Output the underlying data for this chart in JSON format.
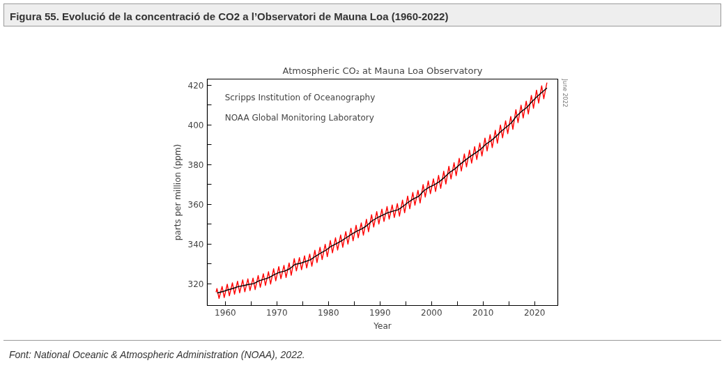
{
  "chart_data": {
    "type": "line",
    "title": "Figura 55. Evolució de la concentració de CO2 a l’Observatori de Mauna Loa (1960-2022)",
    "subtitle": "Atmospheric CO₂ at Mauna Loa Observatory",
    "xlabel": "Year",
    "ylabel": "parts per million (ppm)",
    "annotations": [
      "Scripps Institution of Oceanography",
      "NOAA Global Monitoring Laboratory",
      "June 2022",
      "Font: National Oceanic & Atmospheric Administration (NOAA), 2022."
    ],
    "xlim": [
      1956.5,
      2024.5
    ],
    "ylim": [
      309,
      423
    ],
    "xticks": [
      1960,
      {
        "value": 1965,
        "label": null
      },
      1970,
      {
        "value": 1975,
        "label": null
      },
      1980,
      {
        "value": 1985,
        "label": null
      },
      1990,
      {
        "value": 1995,
        "label": null
      },
      2000,
      {
        "value": 2005,
        "label": null
      },
      2010,
      {
        "value": 2015,
        "label": null
      },
      2020
    ],
    "yticks": [
      320,
      {
        "value": 330,
        "label": null
      },
      340,
      {
        "value": 350,
        "label": null
      },
      360,
      {
        "value": 370,
        "label": null
      },
      380,
      {
        "value": 390,
        "label": null
      },
      400,
      {
        "value": 410,
        "label": null
      },
      420
    ],
    "grid": false,
    "series": [
      {
        "color": "#ff0000",
        "x": [
          1958.2,
          1958.37,
          1958.78,
          1959.37,
          1959.78,
          1960.37,
          1960.78,
          1961.37,
          1961.78,
          1962.37,
          1962.78,
          1963.37,
          1963.78,
          1964.37,
          1964.78,
          1965.37,
          1965.78,
          1966.37,
          1966.78,
          1967.37,
          1967.78,
          1968.37,
          1968.78,
          1969.37,
          1969.78,
          1970.37,
          1970.78,
          1971.37,
          1971.78,
          1972.37,
          1972.78,
          1973.37,
          1973.78,
          1974.37,
          1974.78,
          1975.37,
          1975.78,
          1976.37,
          1976.78,
          1977.37,
          1977.78,
          1978.37,
          1978.78,
          1979.37,
          1979.78,
          1980.37,
          1980.78,
          1981.37,
          1981.78,
          1982.37,
          1982.78,
          1983.37,
          1983.78,
          1984.37,
          1984.78,
          1985.37,
          1985.78,
          1986.37,
          1986.78,
          1987.37,
          1987.78,
          1988.37,
          1988.78,
          1989.37,
          1989.78,
          1990.37,
          1990.78,
          1991.37,
          1991.78,
          1992.37,
          1992.78,
          1993.37,
          1993.78,
          1994.37,
          1994.78,
          1995.37,
          1995.78,
          1996.37,
          1996.78,
          1997.37,
          1997.78,
          1998.37,
          1998.78,
          1999.37,
          1999.78,
          2000.37,
          2000.78,
          2001.37,
          2001.78,
          2002.37,
          2002.78,
          2003.37,
          2003.78,
          2004.37,
          2004.78,
          2005.37,
          2005.78,
          2006.37,
          2006.78,
          2007.37,
          2007.78,
          2008.37,
          2008.78,
          2009.37,
          2009.78,
          2010.37,
          2010.78,
          2011.37,
          2011.78,
          2012.37,
          2012.78,
          2013.37,
          2013.78,
          2014.37,
          2014.78,
          2015.37,
          2015.78,
          2016.37,
          2016.78,
          2017.37,
          2017.78,
          2018.37,
          2018.78,
          2019.37,
          2019.78,
          2020.37,
          2020.78,
          2021.37,
          2021.78,
          2022.37,
          2022.45
        ],
        "values": [
          315.7,
          317.5,
          312.6,
          318.6,
          313.0,
          319.7,
          313.9,
          320.4,
          314.7,
          321.2,
          315.4,
          321.9,
          315.9,
          322.4,
          316.5,
          322.8,
          317.0,
          324.1,
          318.2,
          325.0,
          319.1,
          326.0,
          319.8,
          327.5,
          321.4,
          328.6,
          322.5,
          329.2,
          323.1,
          330.4,
          324.2,
          332.6,
          326.4,
          333.1,
          327.0,
          334.0,
          327.9,
          334.9,
          328.8,
          336.8,
          330.6,
          338.3,
          332.1,
          339.8,
          333.6,
          341.7,
          335.5,
          343.1,
          336.9,
          344.5,
          338.3,
          346.2,
          339.9,
          347.9,
          341.6,
          349.4,
          343.1,
          350.6,
          344.4,
          352.4,
          346.1,
          354.7,
          348.5,
          356.3,
          350.0,
          357.5,
          351.3,
          358.8,
          352.5,
          359.6,
          353.3,
          360.3,
          354.0,
          362.1,
          355.7,
          364.1,
          357.7,
          365.9,
          359.5,
          367.0,
          360.6,
          369.9,
          363.6,
          371.7,
          365.3,
          372.8,
          366.4,
          374.5,
          368.0,
          376.6,
          370.2,
          379.1,
          372.7,
          380.9,
          374.4,
          383.1,
          376.7,
          385.3,
          378.8,
          387.2,
          380.7,
          389.0,
          382.5,
          390.8,
          384.3,
          393.3,
          386.8,
          395.0,
          388.5,
          397.2,
          390.7,
          399.9,
          393.4,
          402.0,
          395.5,
          404.2,
          397.7,
          407.6,
          401.1,
          409.9,
          403.4,
          411.9,
          405.4,
          414.8,
          408.3,
          417.4,
          410.9,
          419.6,
          413.1,
          421.0,
          420.9
        ]
      },
      {
        "color": "#000000",
        "x": [
          1958.4,
          1959.5,
          1960.5,
          1961.5,
          1962.5,
          1963.5,
          1964.5,
          1965.5,
          1966.5,
          1967.5,
          1968.5,
          1969.5,
          1970.5,
          1971.5,
          1972.5,
          1973.5,
          1974.5,
          1975.5,
          1976.5,
          1977.5,
          1978.5,
          1979.5,
          1980.5,
          1981.5,
          1982.5,
          1983.5,
          1984.5,
          1985.5,
          1986.5,
          1987.5,
          1988.5,
          1989.5,
          1990.5,
          1991.5,
          1992.5,
          1993.5,
          1994.5,
          1995.5,
          1996.5,
          1997.5,
          1998.5,
          1999.5,
          2000.5,
          2001.5,
          2002.5,
          2003.5,
          2004.5,
          2005.5,
          2006.5,
          2007.5,
          2008.5,
          2009.5,
          2010.5,
          2011.5,
          2012.5,
          2013.5,
          2014.5,
          2015.5,
          2016.5,
          2017.5,
          2018.5,
          2019.5,
          2020.5,
          2021.5,
          2022.4
        ],
        "values": [
          315.3,
          316.0,
          316.9,
          317.6,
          318.5,
          319.0,
          319.6,
          320.0,
          321.4,
          322.2,
          323.1,
          324.6,
          325.7,
          326.3,
          327.5,
          329.7,
          330.2,
          331.1,
          332.0,
          333.8,
          335.4,
          336.8,
          338.8,
          340.1,
          341.5,
          343.2,
          344.9,
          346.4,
          347.6,
          349.3,
          351.7,
          353.2,
          354.5,
          355.7,
          356.5,
          357.2,
          359.0,
          361.0,
          362.7,
          363.9,
          366.8,
          368.5,
          369.7,
          371.3,
          373.5,
          376.0,
          377.7,
          380.0,
          382.1,
          384.0,
          385.8,
          387.6,
          390.1,
          391.9,
          394.1,
          396.7,
          398.8,
          401.0,
          404.4,
          406.8,
          408.7,
          411.7,
          414.2,
          416.5,
          418.5
        ]
      }
    ]
  }
}
